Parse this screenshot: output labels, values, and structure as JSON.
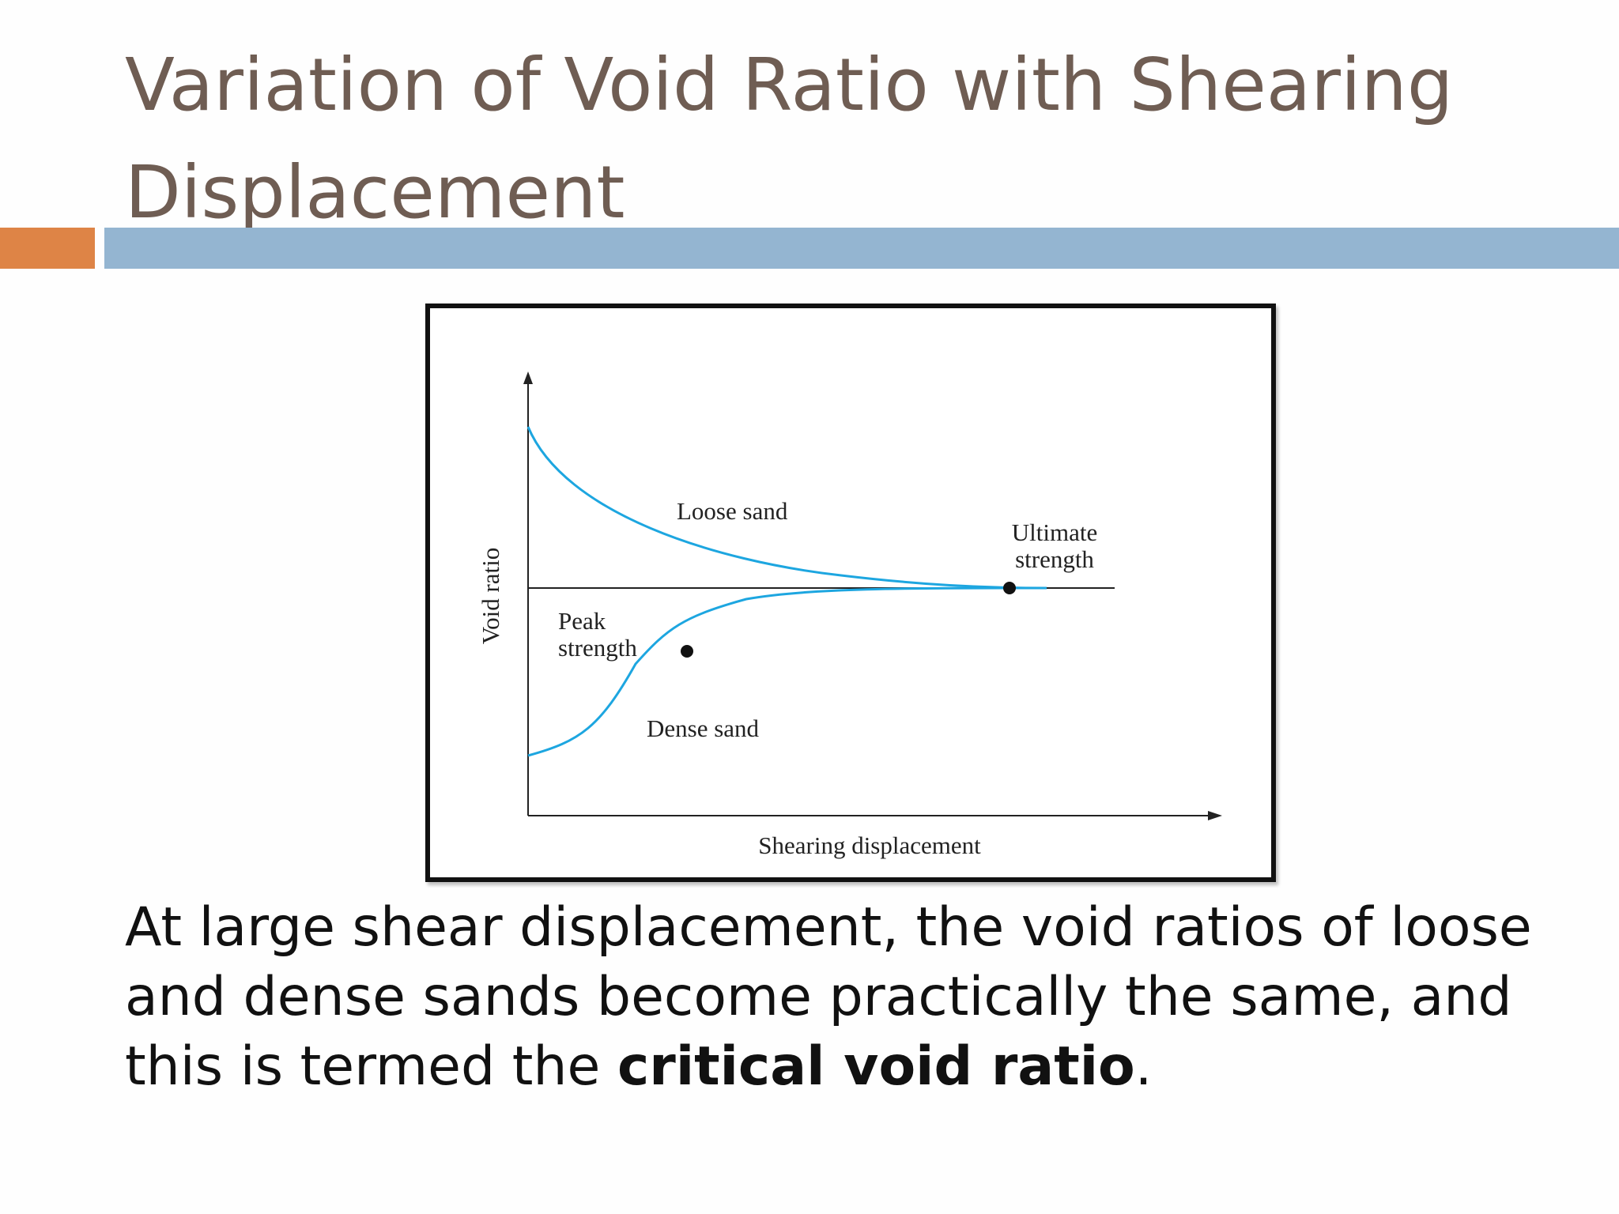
{
  "slide": {
    "title_line1": "Variation of Void Ratio with Shearing",
    "title_line2": "Displacement"
  },
  "figure": {
    "y_axis_label": "Void ratio",
    "x_axis_label": "Shearing displacement",
    "loose_label": "Loose sand",
    "dense_label": "Dense sand",
    "peak_label_line1": "Peak",
    "peak_label_line2": "strength",
    "ultimate_label_line1": "Ultimate",
    "ultimate_label_line2": "strength",
    "curve_color": "#1da6e0",
    "axis_color": "#222222"
  },
  "caption": {
    "text_before": "At large shear displacement, the void ratios of loose and dense sands become practically the same, and this is termed the ",
    "bold_text": "critical void ratio",
    "text_after": "."
  },
  "colors": {
    "title": "#6f5d53",
    "accent_orange": "#de8446",
    "accent_blue": "#94b5d1"
  }
}
